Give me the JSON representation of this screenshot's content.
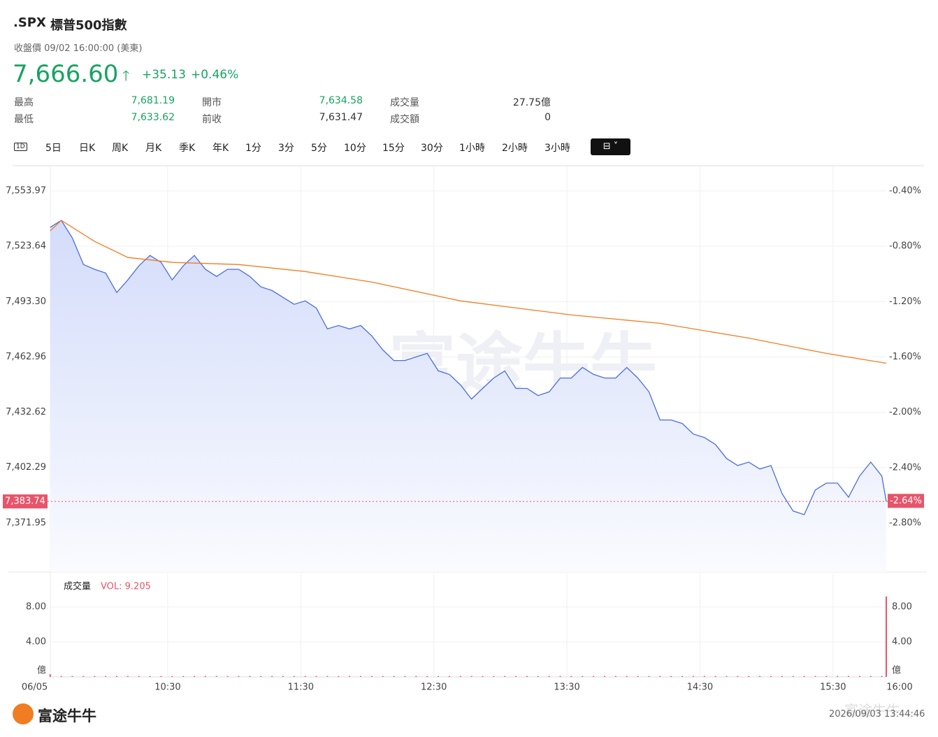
{
  "header": {
    "symbol": ".SPX",
    "name": "標普500指數",
    "status": "收盤價 09/02 16:00:00 (美東)",
    "price": "7,666.60",
    "change": "+35.13",
    "change_pct": "+0.46%"
  },
  "stats": {
    "rows": [
      [
        {
          "label": "最高",
          "value": "7,681.19"
        },
        {
          "label": "開市",
          "value": "7,634.58"
        },
        {
          "label": "成交量",
          "value": "27.75億"
        }
      ],
      [
        {
          "label": "最低",
          "value": "7,633.62"
        },
        {
          "label": "前收",
          "value": "7,631.47"
        },
        {
          "label": "成交額",
          "value": "0"
        }
      ]
    ]
  },
  "tabs": [
    "1D",
    "5日",
    "日K",
    "周K",
    "月K",
    "季K",
    "年K",
    "1分",
    "3分",
    "5分",
    "10分",
    "15分",
    "30分",
    "1小時",
    "2小時",
    "3小時"
  ],
  "chart_data": [
    {
      "type": "line",
      "xlim": [
        0,
        390
      ],
      "ylim": [
        7345.07,
        7567.4
      ],
      "y2lim": [
        -3.154,
        -0.223
      ],
      "yticks": [
        {
          "value": 7553.97,
          "label": "7,553.97"
        },
        {
          "value": 7523.64,
          "label": "7,523.64"
        },
        {
          "value": 7493.3,
          "label": "7,493.30"
        },
        {
          "value": 7462.96,
          "label": "7,462.96"
        },
        {
          "value": 7432.62,
          "label": "7,432.62"
        },
        {
          "value": 7402.29,
          "label": "7,402.29"
        },
        {
          "value": 7371.95,
          "label": "7,371.95"
        }
      ],
      "y2ticks": [
        {
          "value": -0.4,
          "label": "-0.40%"
        },
        {
          "value": -0.8,
          "label": "-0.80%"
        },
        {
          "value": -1.2,
          "label": "-1.20%"
        },
        {
          "value": -1.6,
          "label": "-1.60%"
        },
        {
          "value": -2.0,
          "label": "-2.00%"
        },
        {
          "value": -2.4,
          "label": "-2.40%"
        },
        {
          "value": -2.8,
          "label": "-2.80%"
        }
      ],
      "current": {
        "value": 7383.74,
        "label": "7,383.74"
      },
      "current_pct": {
        "value": -2.64,
        "label": "-2.64%"
      },
      "series": [
        {
          "color": "#4a6ee0",
          "x": [
            7,
            12,
            17,
            22,
            27,
            32,
            37,
            42,
            47,
            52,
            57,
            62,
            67,
            72,
            77,
            82,
            87,
            92,
            97,
            102,
            107,
            112,
            117,
            122,
            127,
            132,
            137,
            142,
            147,
            152,
            157,
            162,
            167,
            172,
            177,
            182,
            187,
            192,
            197,
            202,
            207,
            212,
            217,
            222,
            227,
            232,
            237,
            242,
            247,
            252,
            257,
            262,
            267,
            272,
            277,
            282,
            287,
            292,
            297,
            302,
            307,
            312,
            317,
            322,
            327,
            332,
            337,
            342,
            347,
            352,
            357,
            362,
            367,
            372,
            377,
            382,
            384
          ],
          "values": [
            7534.0,
            7537.8,
            7528.2,
            7513.6,
            7511.0,
            7509.0,
            7498.3,
            7505.2,
            7512.9,
            7518.6,
            7514.8,
            7505.2,
            7512.9,
            7518.6,
            7511.0,
            7507.1,
            7511.0,
            7511.0,
            7507.1,
            7501.4,
            7499.4,
            7495.6,
            7491.8,
            7493.7,
            7489.8,
            7478.3,
            7480.2,
            7478.3,
            7480.2,
            7474.5,
            7466.8,
            7461.0,
            7461.0,
            7463.0,
            7464.9,
            7455.3,
            7453.4,
            7447.6,
            7439.9,
            7445.7,
            7451.4,
            7455.3,
            7445.7,
            7445.7,
            7441.8,
            7443.8,
            7451.4,
            7451.4,
            7457.2,
            7453.4,
            7451.4,
            7451.4,
            7457.2,
            7451.4,
            7443.8,
            7428.4,
            7428.4,
            7426.5,
            7420.7,
            7418.8,
            7414.9,
            7407.3,
            7403.4,
            7405.3,
            7401.5,
            7403.4,
            7388.1,
            7378.5,
            7376.5,
            7390.0,
            7393.8,
            7393.8,
            7386.1,
            7397.7,
            7405.3,
            7397.7,
            7383.74
          ]
        },
        {
          "color": "#f07d22",
          "x": [
            7,
            12,
            27,
            42,
            62,
            92,
            122,
            152,
            192,
            242,
            282,
            322,
            357,
            384
          ],
          "values": [
            7532.1,
            7537.8,
            7526.3,
            7517.5,
            7514.8,
            7513.6,
            7509.8,
            7504.0,
            7493.7,
            7486.0,
            7481.4,
            7473.3,
            7464.9,
            7459.5
          ]
        }
      ],
      "watermark": "富途牛牛"
    },
    {
      "type": "bar",
      "title": "成交量",
      "vol_label": "VOL: 9.205",
      "unit": "億",
      "xlim": [
        0,
        390
      ],
      "ylim": [
        0,
        11.84
      ],
      "yticks": [
        {
          "value": 8,
          "label": "8.00"
        },
        {
          "value": 4,
          "label": "4.00"
        }
      ],
      "xticks": [
        {
          "value": 0,
          "label": "06/05"
        },
        {
          "value": 60,
          "label": "10:30"
        },
        {
          "value": 120,
          "label": "11:30"
        },
        {
          "value": 180,
          "label": "12:30"
        },
        {
          "value": 240,
          "label": "13:30"
        },
        {
          "value": 300,
          "label": "14:30"
        },
        {
          "value": 360,
          "label": "15:30"
        },
        {
          "value": 390,
          "label": "16:00"
        }
      ],
      "color": "#e8546a",
      "x": [
        7,
        12,
        17,
        22,
        27,
        32,
        37,
        42,
        47,
        52,
        57,
        62,
        67,
        72,
        77,
        82,
        87,
        92,
        97,
        102,
        107,
        112,
        117,
        122,
        127,
        132,
        137,
        142,
        147,
        152,
        157,
        162,
        167,
        172,
        177,
        182,
        187,
        192,
        197,
        202,
        207,
        212,
        217,
        222,
        227,
        232,
        237,
        242,
        247,
        252,
        257,
        262,
        267,
        272,
        277,
        282,
        287,
        292,
        297,
        302,
        307,
        312,
        317,
        322,
        327,
        332,
        337,
        342,
        347,
        352,
        357,
        362,
        367,
        372,
        377,
        382,
        384
      ],
      "values": [
        0.3,
        0.1,
        0.1,
        0.1,
        0.1,
        0.1,
        0.1,
        0.1,
        0.1,
        0.1,
        0.1,
        0.1,
        0.1,
        0.1,
        0.1,
        0.1,
        0.1,
        0.1,
        0.1,
        0.1,
        0.1,
        0.1,
        0.1,
        0.1,
        0.1,
        0.1,
        0.1,
        0.1,
        0.1,
        0.1,
        0.1,
        0.1,
        0.1,
        0.1,
        0.1,
        0.1,
        0.1,
        0.1,
        0.1,
        0.1,
        0.1,
        0.1,
        0.1,
        0.1,
        0.1,
        0.1,
        0.1,
        0.1,
        0.1,
        0.1,
        0.1,
        0.1,
        0.1,
        0.1,
        0.1,
        0.1,
        0.1,
        0.1,
        0.1,
        0.1,
        0.1,
        0.1,
        0.1,
        0.1,
        0.1,
        0.1,
        0.1,
        0.1,
        0.1,
        0.1,
        0.1,
        0.1,
        0.1,
        0.1,
        0.1,
        0.1,
        9.205
      ]
    }
  ],
  "footer": {
    "logo": "富途牛牛",
    "timestamp": "2026/09/03 13:44:46"
  }
}
